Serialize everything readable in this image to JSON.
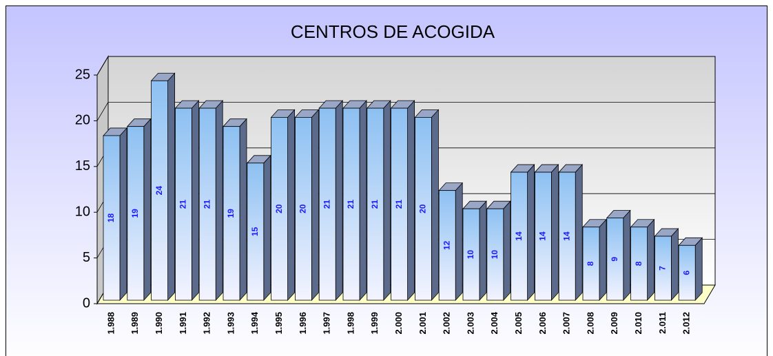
{
  "chart_data": {
    "type": "bar",
    "title": "CENTROS DE ACOGIDA",
    "categories": [
      "1.988",
      "1.989",
      "1.990",
      "1.991",
      "1.992",
      "1.993",
      "1.994",
      "1.995",
      "1.996",
      "1.997",
      "1.998",
      "1.999",
      "2.000",
      "2.001",
      "2.002",
      "2.003",
      "2.004",
      "2.005",
      "2.006",
      "2.007",
      "2.008",
      "2.009",
      "2.010",
      "2.011",
      "2.012"
    ],
    "values": [
      18,
      19,
      24,
      21,
      21,
      19,
      15,
      20,
      20,
      21,
      21,
      21,
      21,
      20,
      12,
      10,
      10,
      14,
      14,
      14,
      8,
      9,
      8,
      7,
      6
    ],
    "color": "#99ccff",
    "ylim": [
      0,
      25
    ],
    "yticks": [
      0,
      5,
      10,
      15,
      20,
      25
    ],
    "grid": true
  }
}
